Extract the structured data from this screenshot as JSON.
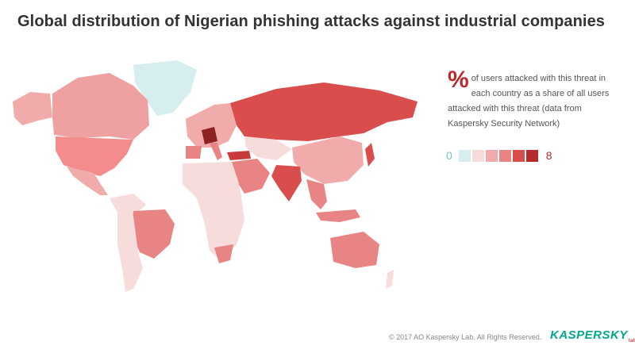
{
  "title": "Global distribution of Nigerian phishing attacks against industrial companies",
  "legend": {
    "symbol": "%",
    "description": "of users attacked with this threat in each country as a share of all users attacked with this threat (data from Kaspersky Security Network)",
    "min_label": "0",
    "max_label": "8",
    "scale_colors": [
      "#d6eeee",
      "#f7dcdc",
      "#f2abab",
      "#e88484",
      "#d94d4d",
      "#b52b2b"
    ]
  },
  "footer": {
    "copyright": "© 2017 AO Kaspersky Lab. All Rights Reserved."
  },
  "logo": {
    "text": "KASPERSKY",
    "sub": "lab"
  },
  "colors": {
    "title": "#333333",
    "accent": "#c0272d",
    "no_data": "#f3e9e9"
  }
}
